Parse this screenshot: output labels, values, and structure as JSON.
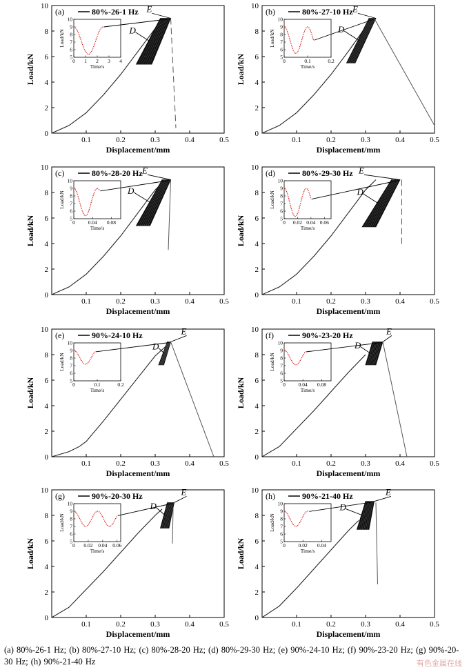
{
  "caption": "(a) 80%-26-1 Hz; (b) 80%-27-10 Hz; (c) 80%-28-20 Hz; (d) 80%-29-30 Hz; (e) 90%-24-10 Hz; (f) 90%-23-20 Hz; (g) 90%-20-30 Hz; (h) 90%-21-40 Hz",
  "watermark": "有色金属在线",
  "chart_data": [
    {
      "type": "line",
      "panel_label": "(a)",
      "legend": "80%-26-1 Hz",
      "xlabel": "Displacement/mm",
      "ylabel": "Load/kN",
      "xlim": [
        0,
        0.5
      ],
      "ylim": [
        0,
        10
      ],
      "xticks": [
        "0.1",
        "0.2",
        "0.3",
        "0.4",
        "0.5"
      ],
      "yticks": [
        "0",
        "2",
        "4",
        "6",
        "8",
        "10"
      ],
      "curve": {
        "x": [
          0,
          0.05,
          0.1,
          0.15,
          0.2,
          0.25,
          0.3,
          0.33
        ],
        "y": [
          0,
          0.6,
          1.6,
          3.0,
          4.6,
          6.4,
          8.2,
          9.0
        ]
      },
      "cyclic_band": {
        "x_start": [
          0.245,
          0.315
        ],
        "x_end": [
          0.29,
          0.345
        ],
        "y_min": 5.4,
        "y_max": 9.0
      },
      "failure": {
        "x": [
          0.345,
          0.36
        ],
        "y": [
          9.0,
          0.4
        ],
        "style": "dashed"
      },
      "annotations": [
        {
          "text": "E",
          "x": 0.275,
          "y": 9.5
        },
        {
          "text": "D",
          "x": 0.225,
          "y": 7.8
        }
      ],
      "inset": {
        "xlabel": "Time/s",
        "ylabel": "Load/kN",
        "xlim": [
          0,
          4
        ],
        "ylim": [
          5,
          10
        ],
        "xticks": [
          "0",
          "1",
          "2",
          "3",
          "4"
        ],
        "yticks": [
          "5",
          "6",
          "7",
          "8",
          "9",
          "10"
        ],
        "x_end": 2.5,
        "period": 2.5,
        "y_max": 9,
        "y_min": 5.4
      }
    },
    {
      "type": "line",
      "panel_label": "(b)",
      "legend": "80%-27-10 Hz",
      "xlabel": "Displacement/mm",
      "ylabel": "Load/kN",
      "xlim": [
        0,
        0.5
      ],
      "ylim": [
        0,
        10
      ],
      "xticks": [
        "0.1",
        "0.2",
        "0.3",
        "0.4",
        "0.5"
      ],
      "yticks": [
        "0",
        "2",
        "4",
        "6",
        "8",
        "10"
      ],
      "curve": {
        "x": [
          0,
          0.05,
          0.1,
          0.15,
          0.2,
          0.25,
          0.3,
          0.325
        ],
        "y": [
          0,
          0.6,
          1.6,
          3.0,
          4.6,
          6.4,
          8.3,
          9.0
        ]
      },
      "cyclic_band": {
        "x_start": [
          0.245,
          0.31
        ],
        "x_end": [
          0.27,
          0.33
        ],
        "y_min": 5.5,
        "y_max": 9.0
      },
      "failure": {
        "x": [
          0.325,
          0.5
        ],
        "y": [
          9.0,
          0.6
        ],
        "style": "solid"
      },
      "annotations": [
        {
          "text": "E",
          "x": 0.262,
          "y": 9.5
        },
        {
          "text": "D",
          "x": 0.22,
          "y": 7.9
        }
      ],
      "inset": {
        "xlabel": "Time/s",
        "ylabel": "Load/kN",
        "xlim": [
          0,
          0.2
        ],
        "ylim": [
          5,
          10
        ],
        "xticks": [
          "0",
          "0.1",
          "0.2"
        ],
        "yticks": [
          "5",
          "6",
          "7",
          "8",
          "9",
          "10"
        ],
        "x_end": 0.125,
        "period": 0.1,
        "y_max": 9,
        "y_min": 5.5
      }
    },
    {
      "type": "line",
      "panel_label": "(c)",
      "legend": "80%-28-20 Hz",
      "xlabel": "Displacement/mm",
      "ylabel": "Load/kN",
      "xlim": [
        0,
        0.5
      ],
      "ylim": [
        0,
        10
      ],
      "xticks": [
        "0.1",
        "0.2",
        "0.3",
        "0.4",
        "0.5"
      ],
      "yticks": [
        "0",
        "2",
        "4",
        "6",
        "8",
        "10"
      ],
      "curve": {
        "x": [
          0,
          0.05,
          0.1,
          0.15,
          0.2,
          0.25,
          0.3,
          0.33
        ],
        "y": [
          0,
          0.6,
          1.6,
          3.0,
          4.6,
          6.4,
          8.2,
          9.0
        ]
      },
      "cyclic_band": {
        "x_start": [
          0.245,
          0.32
        ],
        "x_end": [
          0.285,
          0.345
        ],
        "y_min": 5.4,
        "y_max": 9.0
      },
      "failure": {
        "x": [
          0.345,
          0.338
        ],
        "y": [
          9.0,
          3.5
        ],
        "style": "solid"
      },
      "annotations": [
        {
          "text": "E",
          "x": 0.262,
          "y": 9.5
        },
        {
          "text": "D",
          "x": 0.22,
          "y": 7.9
        }
      ],
      "inset": {
        "xlabel": "Time/s",
        "ylabel": "Load/kN",
        "xlim": [
          0,
          0.1
        ],
        "ylim": [
          5,
          10
        ],
        "xticks": [
          "0",
          "0.04",
          "0.08"
        ],
        "yticks": [
          "5",
          "6",
          "7",
          "8",
          "9",
          "10"
        ],
        "x_end": 0.055,
        "period": 0.05,
        "y_max": 9,
        "y_min": 5.4
      }
    },
    {
      "type": "line",
      "panel_label": "(d)",
      "legend": "80%-29-30 Hz",
      "xlabel": "Displacement/mm",
      "ylabel": "Load/kN",
      "xlim": [
        0,
        0.5
      ],
      "ylim": [
        0,
        10
      ],
      "xticks": [
        "0.1",
        "0.2",
        "0.3",
        "0.4",
        "0.5"
      ],
      "yticks": [
        "0",
        "2",
        "4",
        "6",
        "8",
        "10"
      ],
      "curve": {
        "x": [
          0,
          0.05,
          0.1,
          0.15,
          0.2,
          0.25,
          0.3,
          0.33
        ],
        "y": [
          0,
          0.6,
          1.6,
          3.0,
          4.6,
          6.4,
          8.2,
          9.0
        ]
      },
      "cyclic_band": {
        "x_start": [
          0.29,
          0.375
        ],
        "x_end": [
          0.33,
          0.4
        ],
        "y_min": 5.3,
        "y_max": 9.0
      },
      "failure": {
        "x": [
          0.405,
          0.405
        ],
        "y": [
          9.0,
          3.8
        ],
        "style": "dashed"
      },
      "annotations": [
        {
          "text": "E",
          "x": 0.28,
          "y": 9.5
        },
        {
          "text": "D",
          "x": 0.275,
          "y": 7.8
        }
      ],
      "inset": {
        "xlabel": "Time/s",
        "ylabel": "Load/kN",
        "xlim": [
          0,
          0.07
        ],
        "ylim": [
          5,
          10
        ],
        "xticks": [
          "0",
          "0.02",
          "0.04",
          "0.06"
        ],
        "yticks": [
          "5",
          "6",
          "7",
          "8",
          "9",
          "10"
        ],
        "x_end": 0.04,
        "period": 0.033,
        "y_max": 9,
        "y_min": 5.3
      }
    },
    {
      "type": "line",
      "panel_label": "(e)",
      "legend": "90%-24-10 Hz",
      "xlabel": "Displacement/mm",
      "ylabel": "Load/kN",
      "xlim": [
        0,
        0.5
      ],
      "ylim": [
        0,
        10
      ],
      "xticks": [
        "0.1",
        "0.2",
        "0.3",
        "0.4",
        "0.5"
      ],
      "yticks": [
        "0",
        "2",
        "4",
        "6",
        "8",
        "10"
      ],
      "curve": {
        "x": [
          0,
          0.05,
          0.08,
          0.1,
          0.15,
          0.2,
          0.25,
          0.3,
          0.345
        ],
        "y": [
          0,
          0.4,
          0.8,
          1.2,
          2.8,
          4.5,
          6.2,
          7.9,
          9.0
        ]
      },
      "cyclic_band": {
        "x_start": [
          0.31,
          0.335
        ],
        "x_end": [
          0.325,
          0.345
        ],
        "y_min": 7.2,
        "y_max": 9.0
      },
      "failure": {
        "x": [
          0.345,
          0.47
        ],
        "y": [
          9.0,
          0
        ],
        "style": "solid"
      },
      "annotations": [
        {
          "text": "E",
          "x": 0.375,
          "y": 9.6
        },
        {
          "text": "D",
          "x": 0.292,
          "y": 8.4
        }
      ],
      "inset": {
        "xlabel": "Time/s",
        "ylabel": "Load/kN",
        "xlim": [
          0,
          0.2
        ],
        "ylim": [
          5,
          10
        ],
        "xticks": [
          "0",
          "0.1",
          "0.2"
        ],
        "yticks": [
          "5",
          "6",
          "7",
          "8",
          "9",
          "10"
        ],
        "x_end": 0.09,
        "period": 0.1,
        "y_max": 9,
        "y_min": 7.2
      }
    },
    {
      "type": "line",
      "panel_label": "(f)",
      "legend": "90%-23-20 Hz",
      "xlabel": "Displacement/mm",
      "ylabel": "Load/kN",
      "xlim": [
        0,
        0.5
      ],
      "ylim": [
        0,
        10
      ],
      "xticks": [
        "0.1",
        "0.2",
        "0.3",
        "0.4",
        "0.5"
      ],
      "yticks": [
        "0",
        "2",
        "4",
        "6",
        "8",
        "10"
      ],
      "curve": {
        "x": [
          0,
          0.05,
          0.1,
          0.15,
          0.2,
          0.25,
          0.3
        ],
        "y": [
          0,
          0.8,
          2.2,
          3.6,
          5.1,
          6.6,
          8.0
        ]
      },
      "cyclic_band": {
        "x_start": [
          0.3,
          0.32
        ],
        "x_end": [
          0.33,
          0.35
        ],
        "y_min": 7.2,
        "y_max": 9.0
      },
      "failure": {
        "x": [
          0.35,
          0.42
        ],
        "y": [
          9.0,
          0
        ],
        "style": "solid"
      },
      "annotations": [
        {
          "text": "E",
          "x": 0.36,
          "y": 9.6
        },
        {
          "text": "D",
          "x": 0.268,
          "y": 8.5
        }
      ],
      "inset": {
        "xlabel": "Time/s",
        "ylabel": "Load/kN",
        "xlim": [
          0,
          0.1
        ],
        "ylim": [
          5,
          10
        ],
        "xticks": [
          "0",
          "0.04",
          "0.08"
        ],
        "yticks": [
          "5",
          "6",
          "7",
          "8",
          "9",
          "10"
        ],
        "x_end": 0.045,
        "period": 0.05,
        "y_max": 9,
        "y_min": 7.1
      }
    },
    {
      "type": "line",
      "panel_label": "(g)",
      "legend": "90%-20-30 Hz",
      "xlabel": "Displacement/mm",
      "ylabel": "Load/kN",
      "xlim": [
        0,
        0.5
      ],
      "ylim": [
        0,
        10
      ],
      "xticks": [
        "0.1",
        "0.2",
        "0.3",
        "0.4",
        "0.5"
      ],
      "yticks": [
        "0",
        "2",
        "4",
        "6",
        "8",
        "10"
      ],
      "curve": {
        "x": [
          0,
          0.05,
          0.1,
          0.15,
          0.2,
          0.25,
          0.3,
          0.32
        ],
        "y": [
          0,
          0.8,
          2.2,
          3.6,
          5.1,
          6.6,
          8.0,
          8.5
        ]
      },
      "cyclic_band": {
        "x_start": [
          0.315,
          0.335
        ],
        "x_end": [
          0.34,
          0.355
        ],
        "y_min": 7.0,
        "y_max": 9.0
      },
      "failure": {
        "x": [
          0.352,
          0.35
        ],
        "y": [
          8.6,
          5.8
        ],
        "style": "solid"
      },
      "annotations": [
        {
          "text": "E",
          "x": 0.375,
          "y": 9.6
        },
        {
          "text": "D",
          "x": 0.285,
          "y": 8.5
        }
      ],
      "inset": {
        "xlabel": "Time/s",
        "ylabel": "Load/kN",
        "xlim": [
          0,
          0.065
        ],
        "ylim": [
          5,
          10
        ],
        "xticks": [
          "0",
          "0.02",
          "0.04",
          "0.06"
        ],
        "yticks": [
          "5",
          "6",
          "7",
          "8",
          "9",
          "10"
        ],
        "x_end": 0.06,
        "period": 0.033,
        "y_max": 9,
        "y_min": 7.0
      }
    },
    {
      "type": "line",
      "panel_label": "(h)",
      "legend": "90%-21-40 Hz",
      "xlabel": "Displacement/mm",
      "ylabel": "Load/kN",
      "xlim": [
        0,
        0.5
      ],
      "ylim": [
        0,
        10
      ],
      "xticks": [
        "0.1",
        "0.2",
        "0.3",
        "0.4",
        "0.5"
      ],
      "yticks": [
        "0",
        "2",
        "4",
        "6",
        "8",
        "10"
      ],
      "curve": {
        "x": [
          0,
          0.05,
          0.1,
          0.15,
          0.2,
          0.25,
          0.28
        ],
        "y": [
          0,
          0.9,
          2.3,
          3.8,
          5.3,
          6.8,
          7.6
        ]
      },
      "cyclic_band": {
        "x_start": [
          0.275,
          0.3
        ],
        "x_end": [
          0.31,
          0.325
        ],
        "y_min": 6.9,
        "y_max": 9.1
      },
      "failure": {
        "x": [
          0.33,
          0.335
        ],
        "y": [
          9.0,
          2.6
        ],
        "style": "solid"
      },
      "annotations": [
        {
          "text": "E",
          "x": 0.358,
          "y": 9.6
        },
        {
          "text": "D",
          "x": 0.225,
          "y": 8.4
        }
      ],
      "inset": {
        "xlabel": "Time/s",
        "ylabel": "Load/kN",
        "xlim": [
          0,
          0.05
        ],
        "ylim": [
          5,
          10
        ],
        "xticks": [
          "0",
          "0.02",
          "0.04"
        ],
        "yticks": [
          "5",
          "6",
          "7",
          "8",
          "9",
          "10"
        ],
        "x_end": 0.026,
        "period": 0.025,
        "y_max": 9,
        "y_min": 7.0
      }
    }
  ]
}
